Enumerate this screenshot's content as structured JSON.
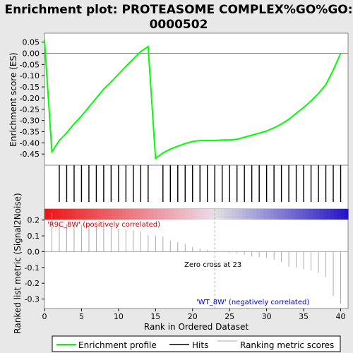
{
  "chart_data": {
    "type": "line",
    "title_line1": "Enrichment plot: PROTEASOME COMPLEX%GO%GO:",
    "title_line2": "0000502",
    "xlabel": "Rank in Ordered Dataset",
    "ylabel_top": "Enrichment score (ES)",
    "ylabel_bottom": "Ranked list metric (Signal2Noise)",
    "xlim": [
      0,
      41
    ],
    "es_ylim": [
      -0.5,
      0.09
    ],
    "metric_ylim": [
      -0.36,
      0.27
    ],
    "x_ticks": [
      0,
      5,
      10,
      15,
      20,
      25,
      30,
      35,
      40
    ],
    "x_tick_labels": [
      "0",
      "5",
      "10",
      "15",
      "20",
      "25",
      "30",
      "35",
      "40"
    ],
    "es_ticks": [
      0.05,
      0.0,
      -0.05,
      -0.1,
      -0.15,
      -0.2,
      -0.25,
      -0.3,
      -0.35,
      -0.4,
      -0.45
    ],
    "es_tick_labels": [
      "0.05",
      "0.00",
      "-0.05",
      "-0.10",
      "-0.15",
      "-0.20",
      "-0.25",
      "-0.30",
      "-0.35",
      "-0.40",
      "-0.45"
    ],
    "metric_ticks": [
      0.2,
      0.1,
      0.0,
      -0.1,
      -0.2,
      -0.3
    ],
    "metric_tick_labels": [
      "0.2",
      "0.1",
      "0.0",
      "-0.1",
      "-0.2",
      "-0.3"
    ],
    "es_curve": {
      "x": [
        0,
        1,
        2,
        3,
        4,
        5,
        6,
        7,
        8,
        9,
        10,
        11,
        12,
        13,
        14,
        15,
        16,
        17,
        18,
        19,
        20,
        21,
        22,
        23,
        24,
        25,
        26,
        27,
        28,
        29,
        30,
        31,
        32,
        33,
        34,
        35,
        36,
        37,
        38,
        39,
        40
      ],
      "y": [
        0.06,
        -0.44,
        -0.39,
        -0.355,
        -0.315,
        -0.28,
        -0.24,
        -0.2,
        -0.16,
        -0.128,
        -0.093,
        -0.058,
        -0.025,
        0.008,
        0.03,
        -0.47,
        -0.445,
        -0.428,
        -0.415,
        -0.403,
        -0.394,
        -0.39,
        -0.39,
        -0.39,
        -0.387,
        -0.387,
        -0.384,
        -0.375,
        -0.366,
        -0.357,
        -0.347,
        -0.333,
        -0.316,
        -0.295,
        -0.268,
        -0.242,
        -0.213,
        -0.18,
        -0.14,
        -0.075,
        0.0
      ]
    },
    "hits": [
      2,
      3,
      4,
      5,
      6,
      7,
      8,
      9,
      10,
      11,
      12,
      13,
      14,
      16,
      17,
      18,
      19,
      20,
      21,
      22,
      23,
      24,
      25,
      26,
      27,
      28,
      29,
      30,
      31,
      32,
      33,
      34,
      35,
      36,
      37,
      38,
      39,
      40
    ],
    "metric_x": [
      1,
      2,
      3,
      4,
      5,
      6,
      7,
      8,
      9,
      10,
      11,
      12,
      13,
      14,
      15,
      16,
      17,
      18,
      19,
      20,
      21,
      22,
      23,
      24,
      25,
      26,
      27,
      28,
      29,
      30,
      31,
      32,
      33,
      34,
      35,
      36,
      37,
      38,
      39,
      40
    ],
    "metric_values": [
      0.245,
      0.18,
      0.175,
      0.17,
      0.168,
      0.165,
      0.163,
      0.16,
      0.155,
      0.145,
      0.14,
      0.135,
      0.128,
      0.105,
      0.1,
      0.095,
      0.07,
      0.06,
      0.05,
      0.03,
      0.02,
      0.01,
      0.003,
      -0.004,
      -0.008,
      -0.012,
      -0.02,
      -0.03,
      -0.035,
      -0.04,
      -0.05,
      -0.065,
      -0.095,
      -0.1,
      -0.11,
      -0.12,
      -0.135,
      -0.16,
      -0.28,
      -0.33
    ],
    "pos_label": "'R9C_8W' (positively correlated)",
    "neg_label": "'WT_8W' (negatively correlated)",
    "zero_cross_label": "Zero cross at 23",
    "zero_cross_x": 23,
    "legend": [
      {
        "label": "Enrichment profile",
        "color": "#00ff00"
      },
      {
        "label": "Hits",
        "color": "#000000"
      },
      {
        "label": "Ranking metric scores",
        "color": "#aaaaaa"
      }
    ],
    "colors": {
      "es_line": "#00ff00",
      "pos_text": "#cc0000",
      "neg_text": "#0000cc",
      "metric_line": "#aaaaaa"
    }
  }
}
